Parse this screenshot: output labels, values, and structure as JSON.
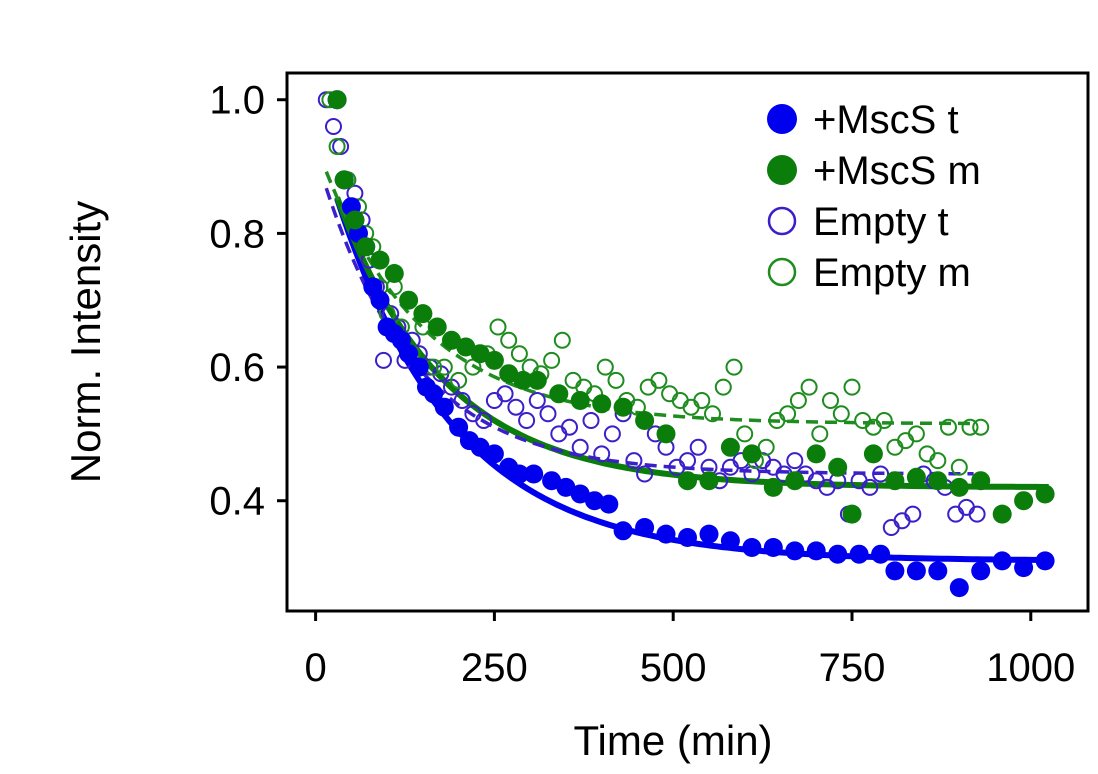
{
  "chart_data": {
    "type": "scatter",
    "title": "",
    "xlabel": "Time (min)",
    "ylabel": "Norm. Intensity",
    "xlim": [
      -40,
      1080
    ],
    "ylim": [
      0.235,
      1.04
    ],
    "xticks": [
      0,
      250,
      500,
      750,
      1000
    ],
    "yticks": [
      0.4,
      0.6,
      0.8,
      1.0
    ],
    "xtick_labels": [
      "0",
      "250",
      "500",
      "750",
      "1000"
    ],
    "ytick_labels": [
      "0.4",
      "0.6",
      "0.8",
      "1.0"
    ],
    "legend_position": "top-right",
    "grid": false,
    "series": [
      {
        "name": "+MscS t",
        "color": "#0000ee",
        "marker": "filled-circle",
        "fit": {
          "style": "solid",
          "a": 0.65,
          "b": 0.31,
          "tau": 165,
          "x_start": 30,
          "x_end": 1025
        },
        "points": [
          [
            30,
            1.0
          ],
          [
            40,
            0.88
          ],
          [
            50,
            0.84
          ],
          [
            55,
            0.82
          ],
          [
            60,
            0.8
          ],
          [
            70,
            0.78
          ],
          [
            80,
            0.72
          ],
          [
            90,
            0.7
          ],
          [
            100,
            0.66
          ],
          [
            110,
            0.65
          ],
          [
            120,
            0.64
          ],
          [
            130,
            0.62
          ],
          [
            145,
            0.6
          ],
          [
            155,
            0.57
          ],
          [
            165,
            0.56
          ],
          [
            180,
            0.54
          ],
          [
            200,
            0.51
          ],
          [
            215,
            0.49
          ],
          [
            230,
            0.48
          ],
          [
            250,
            0.47
          ],
          [
            270,
            0.45
          ],
          [
            285,
            0.44
          ],
          [
            305,
            0.44
          ],
          [
            330,
            0.43
          ],
          [
            350,
            0.42
          ],
          [
            370,
            0.41
          ],
          [
            390,
            0.4
          ],
          [
            410,
            0.395
          ],
          [
            430,
            0.355
          ],
          [
            460,
            0.36
          ],
          [
            490,
            0.35
          ],
          [
            520,
            0.345
          ],
          [
            550,
            0.35
          ],
          [
            580,
            0.34
          ],
          [
            610,
            0.33
          ],
          [
            640,
            0.33
          ],
          [
            670,
            0.325
          ],
          [
            700,
            0.325
          ],
          [
            730,
            0.32
          ],
          [
            760,
            0.32
          ],
          [
            790,
            0.32
          ],
          [
            810,
            0.295
          ],
          [
            840,
            0.295
          ],
          [
            870,
            0.295
          ],
          [
            900,
            0.27
          ],
          [
            930,
            0.295
          ],
          [
            960,
            0.31
          ],
          [
            990,
            0.3
          ],
          [
            1020,
            0.31
          ]
        ]
      },
      {
        "name": "+MscS m",
        "color": "#0a7d0a",
        "marker": "filled-circle",
        "fit": {
          "style": "solid",
          "a": 0.53,
          "b": 0.42,
          "tau": 150,
          "x_start": 30,
          "x_end": 1025
        },
        "points": [
          [
            30,
            1.0
          ],
          [
            40,
            0.88
          ],
          [
            55,
            0.82
          ],
          [
            70,
            0.78
          ],
          [
            90,
            0.76
          ],
          [
            110,
            0.74
          ],
          [
            130,
            0.7
          ],
          [
            150,
            0.68
          ],
          [
            170,
            0.66
          ],
          [
            190,
            0.64
          ],
          [
            210,
            0.63
          ],
          [
            230,
            0.62
          ],
          [
            250,
            0.61
          ],
          [
            270,
            0.59
          ],
          [
            290,
            0.58
          ],
          [
            310,
            0.58
          ],
          [
            340,
            0.56
          ],
          [
            370,
            0.55
          ],
          [
            400,
            0.545
          ],
          [
            430,
            0.54
          ],
          [
            460,
            0.52
          ],
          [
            490,
            0.5
          ],
          [
            520,
            0.43
          ],
          [
            550,
            0.43
          ],
          [
            580,
            0.48
          ],
          [
            610,
            0.47
          ],
          [
            640,
            0.42
          ],
          [
            670,
            0.43
          ],
          [
            700,
            0.47
          ],
          [
            730,
            0.45
          ],
          [
            750,
            0.38
          ],
          [
            780,
            0.47
          ],
          [
            810,
            0.43
          ],
          [
            840,
            0.435
          ],
          [
            870,
            0.43
          ],
          [
            900,
            0.42
          ],
          [
            930,
            0.43
          ],
          [
            960,
            0.38
          ],
          [
            990,
            0.4
          ],
          [
            1020,
            0.41
          ]
        ]
      },
      {
        "name": "Empty t",
        "color": "#3b1fc9",
        "marker": "open-circle",
        "fit": {
          "style": "dashed",
          "a": 0.48,
          "b": 0.44,
          "tau": 130,
          "x_start": 15,
          "x_end": 920
        },
        "points": [
          [
            15,
            1.0
          ],
          [
            25,
            0.96
          ],
          [
            35,
            0.93
          ],
          [
            45,
            0.88
          ],
          [
            55,
            0.86
          ],
          [
            65,
            0.82
          ],
          [
            75,
            0.76
          ],
          [
            85,
            0.72
          ],
          [
            95,
            0.61
          ],
          [
            105,
            0.68
          ],
          [
            115,
            0.66
          ],
          [
            125,
            0.61
          ],
          [
            135,
            0.64
          ],
          [
            145,
            0.62
          ],
          [
            160,
            0.6
          ],
          [
            175,
            0.59
          ],
          [
            190,
            0.57
          ],
          [
            205,
            0.55
          ],
          [
            220,
            0.53
          ],
          [
            235,
            0.52
          ],
          [
            250,
            0.55
          ],
          [
            265,
            0.56
          ],
          [
            280,
            0.54
          ],
          [
            295,
            0.52
          ],
          [
            310,
            0.55
          ],
          [
            325,
            0.53
          ],
          [
            340,
            0.5
          ],
          [
            355,
            0.51
          ],
          [
            370,
            0.48
          ],
          [
            385,
            0.52
          ],
          [
            400,
            0.47
          ],
          [
            415,
            0.5
          ],
          [
            430,
            0.53
          ],
          [
            445,
            0.46
          ],
          [
            460,
            0.44
          ],
          [
            475,
            0.5
          ],
          [
            490,
            0.48
          ],
          [
            505,
            0.45
          ],
          [
            520,
            0.46
          ],
          [
            535,
            0.48
          ],
          [
            550,
            0.45
          ],
          [
            565,
            0.43
          ],
          [
            580,
            0.45
          ],
          [
            595,
            0.46
          ],
          [
            610,
            0.44
          ],
          [
            625,
            0.46
          ],
          [
            640,
            0.45
          ],
          [
            655,
            0.44
          ],
          [
            670,
            0.46
          ],
          [
            685,
            0.44
          ],
          [
            700,
            0.43
          ],
          [
            715,
            0.42
          ],
          [
            730,
            0.43
          ],
          [
            745,
            0.38
          ],
          [
            760,
            0.43
          ],
          [
            775,
            0.42
          ],
          [
            790,
            0.44
          ],
          [
            805,
            0.36
          ],
          [
            820,
            0.37
          ],
          [
            835,
            0.38
          ],
          [
            850,
            0.44
          ],
          [
            865,
            0.43
          ],
          [
            880,
            0.42
          ],
          [
            895,
            0.38
          ],
          [
            910,
            0.39
          ],
          [
            925,
            0.38
          ]
        ]
      },
      {
        "name": "Empty m",
        "color": "#1e8c1e",
        "marker": "open-circle",
        "fit": {
          "style": "dashed",
          "a": 0.42,
          "b": 0.515,
          "tau": 140,
          "x_start": 15,
          "x_end": 920
        },
        "points": [
          [
            20,
            1.0
          ],
          [
            30,
            0.93
          ],
          [
            45,
            0.88
          ],
          [
            60,
            0.84
          ],
          [
            70,
            0.8
          ],
          [
            80,
            0.78
          ],
          [
            90,
            0.72
          ],
          [
            100,
            0.68
          ],
          [
            110,
            0.72
          ],
          [
            120,
            0.66
          ],
          [
            135,
            0.62
          ],
          [
            150,
            0.66
          ],
          [
            165,
            0.6
          ],
          [
            180,
            0.6
          ],
          [
            200,
            0.58
          ],
          [
            220,
            0.6
          ],
          [
            240,
            0.62
          ],
          [
            255,
            0.66
          ],
          [
            270,
            0.64
          ],
          [
            285,
            0.62
          ],
          [
            300,
            0.6
          ],
          [
            315,
            0.59
          ],
          [
            330,
            0.61
          ],
          [
            345,
            0.64
          ],
          [
            360,
            0.58
          ],
          [
            375,
            0.57
          ],
          [
            390,
            0.56
          ],
          [
            405,
            0.6
          ],
          [
            420,
            0.58
          ],
          [
            435,
            0.55
          ],
          [
            450,
            0.54
          ],
          [
            465,
            0.57
          ],
          [
            480,
            0.58
          ],
          [
            495,
            0.56
          ],
          [
            510,
            0.55
          ],
          [
            525,
            0.54
          ],
          [
            540,
            0.55
          ],
          [
            555,
            0.53
          ],
          [
            570,
            0.57
          ],
          [
            585,
            0.6
          ],
          [
            600,
            0.5
          ],
          [
            615,
            0.46
          ],
          [
            630,
            0.48
          ],
          [
            645,
            0.52
          ],
          [
            660,
            0.53
          ],
          [
            675,
            0.55
          ],
          [
            690,
            0.57
          ],
          [
            705,
            0.5
          ],
          [
            720,
            0.55
          ],
          [
            735,
            0.53
          ],
          [
            750,
            0.57
          ],
          [
            765,
            0.52
          ],
          [
            780,
            0.51
          ],
          [
            795,
            0.52
          ],
          [
            810,
            0.48
          ],
          [
            825,
            0.49
          ],
          [
            840,
            0.5
          ],
          [
            855,
            0.47
          ],
          [
            870,
            0.46
          ],
          [
            885,
            0.51
          ],
          [
            900,
            0.45
          ],
          [
            915,
            0.51
          ],
          [
            930,
            0.51
          ]
        ]
      }
    ]
  }
}
